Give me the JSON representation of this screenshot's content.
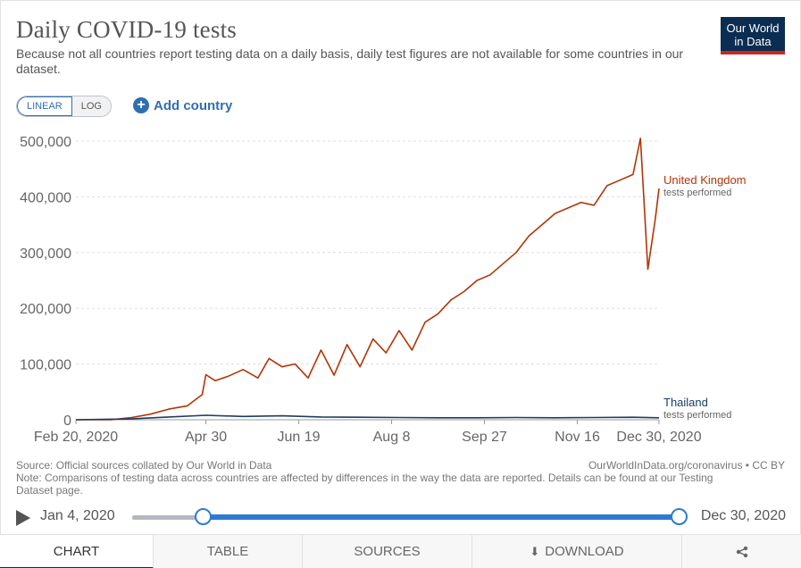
{
  "header": {
    "title": "Daily COVID-19 tests",
    "subtitle": "Because not all countries report testing data on a daily basis, daily test figures are not available for some countries in our dataset.",
    "logo_line1": "Our World",
    "logo_line2": "in Data"
  },
  "controls": {
    "linear_label": "LINEAR",
    "log_label": "LOG",
    "add_country_label": "Add country"
  },
  "chart_data": {
    "type": "line",
    "title": "Daily COVID-19 tests",
    "xlabel": "",
    "ylabel": "",
    "x_range": [
      "2020-02-20",
      "2020-12-30"
    ],
    "ylim": [
      0,
      500000
    ],
    "y_ticks": [
      0,
      100000,
      200000,
      300000,
      400000,
      500000
    ],
    "y_tick_labels": [
      "0",
      "100,000",
      "200,000",
      "300,000",
      "400,000",
      "500,000"
    ],
    "x_ticks": [
      "2020-02-20",
      "2020-04-30",
      "2020-06-19",
      "2020-08-08",
      "2020-09-27",
      "2020-11-16",
      "2020-12-30"
    ],
    "x_tick_labels": [
      "Feb 20, 2020",
      "Apr 30",
      "Jun 19",
      "Aug 8",
      "Sep 27",
      "Nov 16",
      "Dec 30, 2020"
    ],
    "grid": "horizontal dashed",
    "series": [
      {
        "name": "United Kingdom",
        "sublabel": "tests performed",
        "color": "#b13507",
        "points": [
          [
            "2020-02-20",
            0
          ],
          [
            "2020-03-10",
            0
          ],
          [
            "2020-03-21",
            4000
          ],
          [
            "2020-03-31",
            10000
          ],
          [
            "2020-04-10",
            19000
          ],
          [
            "2020-04-20",
            25000
          ],
          [
            "2020-04-28",
            45000
          ],
          [
            "2020-04-30",
            81000
          ],
          [
            "2020-05-05",
            70000
          ],
          [
            "2020-05-12",
            78000
          ],
          [
            "2020-05-20",
            90000
          ],
          [
            "2020-05-28",
            75000
          ],
          [
            "2020-06-03",
            110000
          ],
          [
            "2020-06-10",
            95000
          ],
          [
            "2020-06-17",
            100000
          ],
          [
            "2020-06-24",
            75000
          ],
          [
            "2020-07-01",
            125000
          ],
          [
            "2020-07-08",
            80000
          ],
          [
            "2020-07-15",
            135000
          ],
          [
            "2020-07-22",
            95000
          ],
          [
            "2020-07-29",
            145000
          ],
          [
            "2020-08-05",
            120000
          ],
          [
            "2020-08-12",
            160000
          ],
          [
            "2020-08-19",
            125000
          ],
          [
            "2020-08-26",
            175000
          ],
          [
            "2020-09-02",
            190000
          ],
          [
            "2020-09-09",
            215000
          ],
          [
            "2020-09-16",
            230000
          ],
          [
            "2020-09-23",
            250000
          ],
          [
            "2020-09-30",
            260000
          ],
          [
            "2020-10-07",
            280000
          ],
          [
            "2020-10-14",
            300000
          ],
          [
            "2020-10-21",
            330000
          ],
          [
            "2020-10-28",
            350000
          ],
          [
            "2020-11-04",
            370000
          ],
          [
            "2020-11-11",
            380000
          ],
          [
            "2020-11-18",
            390000
          ],
          [
            "2020-11-25",
            385000
          ],
          [
            "2020-12-02",
            420000
          ],
          [
            "2020-12-09",
            430000
          ],
          [
            "2020-12-16",
            440000
          ],
          [
            "2020-12-20",
            505000
          ],
          [
            "2020-12-24",
            270000
          ],
          [
            "2020-12-28",
            360000
          ],
          [
            "2020-12-30",
            415000
          ]
        ]
      },
      {
        "name": "Thailand",
        "sublabel": "tests performed",
        "color": "#1d3d63",
        "points": [
          [
            "2020-02-20",
            0
          ],
          [
            "2020-03-20",
            1500
          ],
          [
            "2020-04-10",
            5000
          ],
          [
            "2020-04-30",
            8000
          ],
          [
            "2020-05-20",
            6000
          ],
          [
            "2020-06-10",
            7000
          ],
          [
            "2020-07-01",
            5000
          ],
          [
            "2020-07-22",
            4500
          ],
          [
            "2020-08-12",
            4000
          ],
          [
            "2020-09-02",
            3500
          ],
          [
            "2020-09-23",
            3500
          ],
          [
            "2020-10-14",
            4000
          ],
          [
            "2020-11-04",
            3500
          ],
          [
            "2020-11-25",
            4000
          ],
          [
            "2020-12-16",
            4500
          ],
          [
            "2020-12-30",
            3500
          ]
        ]
      }
    ]
  },
  "footer": {
    "source_line": "Source: Official sources collated by Our World in Data",
    "note_line": "Note: Comparisons of testing data across countries are affected by differences in the way the data are reported. Details can be found at our Testing Dataset page.",
    "credit": "OurWorldInData.org/coronavirus • CC BY"
  },
  "timeline": {
    "start_label": "Jan 4, 2020",
    "end_label": "Dec 30, 2020",
    "selection_start_fraction": 0.155,
    "selection_end_fraction": 1.0
  },
  "tabs": [
    {
      "label": "CHART",
      "icon": "",
      "active": true
    },
    {
      "label": "TABLE",
      "icon": "",
      "active": false
    },
    {
      "label": "SOURCES",
      "icon": "",
      "active": false
    },
    {
      "label": "DOWNLOAD",
      "icon": "download-icon",
      "active": false
    },
    {
      "label": "",
      "icon": "share-icon",
      "active": false
    }
  ]
}
